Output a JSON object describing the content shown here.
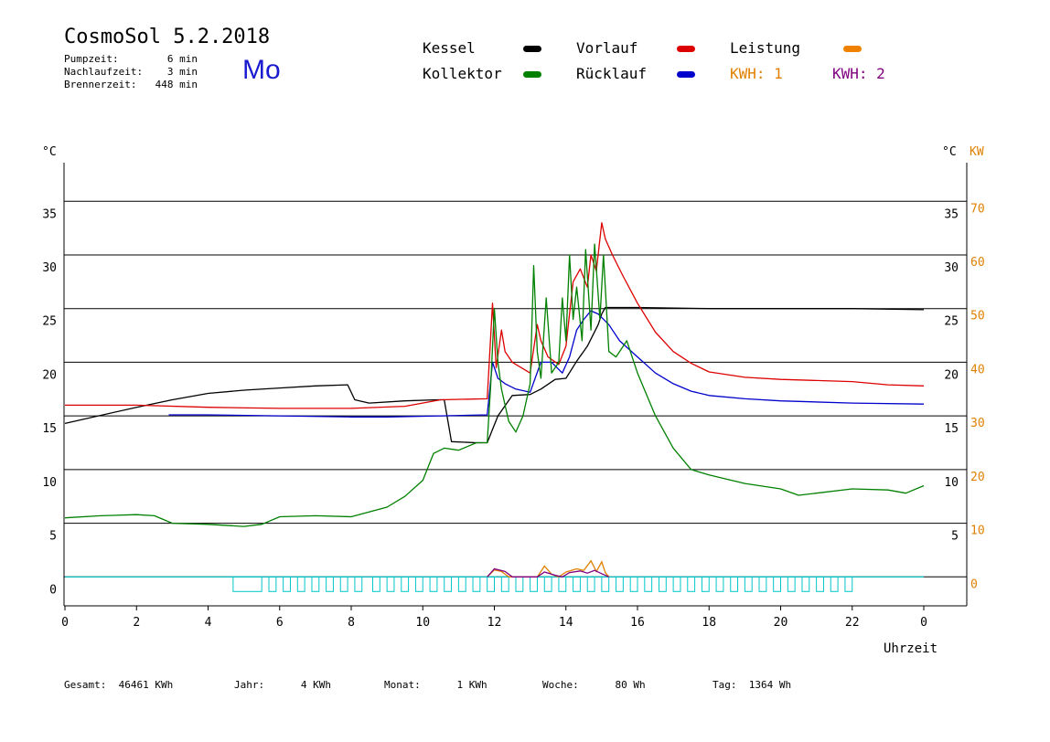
{
  "header": {
    "title": "CosmoSol 5.2.2018",
    "day": "Mo",
    "info": [
      {
        "label": "Pumpzeit:",
        "value": "6 min"
      },
      {
        "label": "Nachlaufzeit:",
        "value": "3 min"
      },
      {
        "label": "Brennerzeit:",
        "value": "448 min"
      }
    ]
  },
  "legend": {
    "kessel": {
      "label": "Kessel",
      "color": "#000000"
    },
    "vorlauf": {
      "label": "Vorlauf",
      "color": "#dd0000"
    },
    "leistung": {
      "label": "Leistung",
      "color": "#f08000"
    },
    "kollektor": {
      "label": "Kollektor",
      "color": "#008000"
    },
    "ruecklauf": {
      "label": "Rücklauf",
      "color": "#0000cc"
    },
    "kwh1": {
      "label": "KWH: 1",
      "color": "#e08000"
    },
    "kwh2": {
      "label": "KWH: 2",
      "color": "#800080"
    }
  },
  "footer": {
    "gesamt": {
      "label": "Gesamt:",
      "value": "46461 KWh"
    },
    "jahr": {
      "label": "Jahr:",
      "value": "4 KWh"
    },
    "monat": {
      "label": "Monat:",
      "value": "1 KWh"
    },
    "woche": {
      "label": "Woche:",
      "value": "80 Wh"
    },
    "tag": {
      "label": "Tag:",
      "value": "1364 Wh"
    }
  },
  "chart_data": {
    "type": "line",
    "xlabel": "Uhrzeit",
    "ylabel_left": "°C",
    "ylabel_right_temp": "°C",
    "ylabel_right_power": "KW",
    "xlim": [
      0,
      24
    ],
    "ylim": [
      -2.7,
      38.6
    ],
    "x_ticks": [
      "0",
      "2",
      "4",
      "6",
      "8",
      "10",
      "12",
      "14",
      "16",
      "18",
      "20",
      "22",
      "0"
    ],
    "y_ticks_left": [
      "0",
      "5",
      "10",
      "15",
      "20",
      "25",
      "30",
      "35"
    ],
    "y_ticks_right_temp": [
      "5",
      "10",
      "15",
      "20",
      "25",
      "30",
      "35"
    ],
    "y_ticks_right_power": [
      "0",
      "10",
      "20",
      "30",
      "40",
      "50",
      "60",
      "70"
    ],
    "grid": true,
    "series": [
      {
        "name": "Kessel",
        "color": "#000000",
        "points": [
          [
            0,
            14.3
          ],
          [
            2,
            15.8
          ],
          [
            3,
            16.5
          ],
          [
            4,
            17.1
          ],
          [
            5,
            17.4
          ],
          [
            6,
            17.6
          ],
          [
            7,
            17.8
          ],
          [
            7.9,
            17.9
          ],
          [
            8.1,
            16.5
          ],
          [
            8.5,
            16.2
          ],
          [
            9.5,
            16.4
          ],
          [
            10.4,
            16.5
          ],
          [
            10.6,
            16.5
          ],
          [
            10.8,
            12.6
          ],
          [
            11.5,
            12.5
          ],
          [
            11.8,
            12.5
          ],
          [
            12.1,
            15.0
          ],
          [
            12.5,
            16.9
          ],
          [
            13.0,
            17.0
          ],
          [
            13.3,
            17.5
          ],
          [
            13.7,
            18.4
          ],
          [
            14.0,
            18.5
          ],
          [
            14.3,
            20.1
          ],
          [
            14.6,
            21.5
          ],
          [
            14.9,
            23.5
          ],
          [
            15.0,
            24.5
          ],
          [
            15.1,
            25.1
          ],
          [
            16.0,
            25.1
          ],
          [
            18,
            25.0
          ],
          [
            20,
            25.0
          ],
          [
            22,
            25.0
          ],
          [
            24,
            24.9
          ]
        ]
      },
      {
        "name": "Vorlauf",
        "color": "#dd0000",
        "points": [
          [
            0,
            16.0
          ],
          [
            2,
            16.0
          ],
          [
            4,
            15.8
          ],
          [
            6,
            15.7
          ],
          [
            8,
            15.7
          ],
          [
            9.5,
            15.9
          ],
          [
            10.5,
            16.5
          ],
          [
            11.8,
            16.6
          ],
          [
            11.95,
            25.5
          ],
          [
            12.05,
            19.5
          ],
          [
            12.2,
            23.0
          ],
          [
            12.3,
            21.0
          ],
          [
            12.5,
            20.0
          ],
          [
            13.0,
            19.0
          ],
          [
            13.2,
            23.5
          ],
          [
            13.3,
            22.0
          ],
          [
            13.5,
            20.5
          ],
          [
            13.8,
            19.8
          ],
          [
            14.0,
            21.5
          ],
          [
            14.1,
            24.5
          ],
          [
            14.2,
            27.5
          ],
          [
            14.4,
            28.7
          ],
          [
            14.6,
            27.0
          ],
          [
            14.7,
            30.0
          ],
          [
            14.85,
            28.5
          ],
          [
            15.0,
            33.0
          ],
          [
            15.1,
            31.5
          ],
          [
            15.3,
            30.0
          ],
          [
            15.6,
            28.0
          ],
          [
            16.0,
            25.5
          ],
          [
            16.5,
            22.8
          ],
          [
            17.0,
            21.0
          ],
          [
            17.5,
            19.9
          ],
          [
            18,
            19.1
          ],
          [
            19,
            18.6
          ],
          [
            20,
            18.4
          ],
          [
            21,
            18.3
          ],
          [
            22,
            18.2
          ],
          [
            23,
            17.9
          ],
          [
            24,
            17.8
          ]
        ]
      },
      {
        "name": "Rücklauf",
        "color": "#0000cc",
        "points": [
          [
            2.9,
            15.1
          ],
          [
            4,
            15.1
          ],
          [
            6,
            15.0
          ],
          [
            8,
            14.9
          ],
          [
            9,
            14.9
          ],
          [
            10.5,
            15.0
          ],
          [
            11.8,
            15.1
          ],
          [
            11.95,
            20.0
          ],
          [
            12.1,
            18.5
          ],
          [
            12.3,
            18.0
          ],
          [
            12.6,
            17.5
          ],
          [
            13.0,
            17.2
          ],
          [
            13.3,
            20.0
          ],
          [
            13.6,
            20.0
          ],
          [
            13.9,
            19.0
          ],
          [
            14.1,
            20.5
          ],
          [
            14.3,
            23.0
          ],
          [
            14.5,
            24.0
          ],
          [
            14.7,
            24.8
          ],
          [
            14.9,
            24.5
          ],
          [
            15.2,
            23.5
          ],
          [
            15.5,
            22.0
          ],
          [
            16.0,
            20.5
          ],
          [
            16.5,
            19.0
          ],
          [
            17,
            18.0
          ],
          [
            17.5,
            17.3
          ],
          [
            18,
            16.9
          ],
          [
            19,
            16.6
          ],
          [
            20,
            16.4
          ],
          [
            22,
            16.2
          ],
          [
            24,
            16.1
          ]
        ]
      },
      {
        "name": "Kollektor",
        "color": "#008000",
        "points": [
          [
            0,
            5.5
          ],
          [
            1,
            5.7
          ],
          [
            2,
            5.8
          ],
          [
            2.5,
            5.7
          ],
          [
            3,
            5.0
          ],
          [
            4,
            4.9
          ],
          [
            5,
            4.7
          ],
          [
            5.5,
            4.9
          ],
          [
            6,
            5.6
          ],
          [
            7,
            5.7
          ],
          [
            8,
            5.6
          ],
          [
            9,
            6.5
          ],
          [
            9.5,
            7.5
          ],
          [
            10,
            9.0
          ],
          [
            10.3,
            11.5
          ],
          [
            10.6,
            12.0
          ],
          [
            11,
            11.8
          ],
          [
            11.5,
            12.5
          ],
          [
            11.8,
            12.5
          ],
          [
            11.9,
            18.0
          ],
          [
            12.0,
            25.0
          ],
          [
            12.1,
            20.0
          ],
          [
            12.2,
            17.5
          ],
          [
            12.4,
            14.5
          ],
          [
            12.6,
            13.5
          ],
          [
            12.8,
            15.0
          ],
          [
            13.0,
            18.0
          ],
          [
            13.1,
            29.0
          ],
          [
            13.2,
            21.0
          ],
          [
            13.3,
            18.5
          ],
          [
            13.45,
            26.0
          ],
          [
            13.6,
            19.0
          ],
          [
            13.8,
            20.0
          ],
          [
            13.9,
            26.0
          ],
          [
            14.0,
            22.0
          ],
          [
            14.1,
            30.0
          ],
          [
            14.2,
            24.0
          ],
          [
            14.3,
            27.0
          ],
          [
            14.45,
            22.0
          ],
          [
            14.55,
            30.5
          ],
          [
            14.7,
            23.0
          ],
          [
            14.8,
            31.0
          ],
          [
            14.95,
            24.0
          ],
          [
            15.05,
            30.0
          ],
          [
            15.2,
            21.0
          ],
          [
            15.4,
            20.5
          ],
          [
            15.7,
            22.0
          ],
          [
            16.0,
            19.0
          ],
          [
            16.5,
            15.0
          ],
          [
            17,
            12.0
          ],
          [
            17.5,
            10.0
          ],
          [
            18,
            9.5
          ],
          [
            19,
            8.7
          ],
          [
            20,
            8.2
          ],
          [
            20.5,
            7.6
          ],
          [
            21,
            7.8
          ],
          [
            22,
            8.2
          ],
          [
            23,
            8.1
          ],
          [
            23.5,
            7.8
          ],
          [
            24,
            8.5
          ]
        ]
      }
    ],
    "power_series": [
      {
        "name": "KWH: 1",
        "color": "#e08000",
        "points": [
          [
            11.8,
            0
          ],
          [
            12.0,
            1.3
          ],
          [
            12.2,
            1.0
          ],
          [
            12.4,
            0
          ],
          [
            13.2,
            0
          ],
          [
            13.4,
            2.0
          ],
          [
            13.6,
            0.5
          ],
          [
            13.8,
            0
          ],
          [
            14.0,
            0.9
          ],
          [
            14.3,
            1.5
          ],
          [
            14.5,
            1.2
          ],
          [
            14.7,
            3.0
          ],
          [
            14.85,
            1.0
          ],
          [
            15.0,
            2.8
          ],
          [
            15.1,
            0.8
          ],
          [
            15.2,
            0
          ]
        ]
      },
      {
        "name": "KWH: 2",
        "color": "#800080",
        "points": [
          [
            11.8,
            0
          ],
          [
            12.0,
            1.5
          ],
          [
            12.3,
            1.0
          ],
          [
            12.5,
            0
          ],
          [
            13.2,
            0
          ],
          [
            13.4,
            0.9
          ],
          [
            13.7,
            0.3
          ],
          [
            13.9,
            0
          ],
          [
            14.1,
            0.8
          ],
          [
            14.4,
            1.1
          ],
          [
            14.6,
            0.7
          ],
          [
            14.8,
            1.2
          ],
          [
            15.0,
            0.6
          ],
          [
            15.2,
            0
          ]
        ]
      }
    ],
    "pump_activity": {
      "color": "#00c8c8",
      "intervals": [
        [
          4.7,
          5.5
        ],
        [
          5.7,
          5.9
        ],
        [
          6.1,
          6.3
        ],
        [
          6.5,
          6.7
        ],
        [
          6.9,
          7.1
        ],
        [
          7.3,
          7.5
        ],
        [
          7.7,
          7.9
        ],
        [
          8.1,
          8.3
        ],
        [
          8.6,
          8.8
        ],
        [
          9.0,
          9.2
        ],
        [
          9.4,
          9.6
        ],
        [
          9.8,
          10.0
        ],
        [
          10.2,
          10.4
        ],
        [
          10.6,
          10.8
        ],
        [
          11.0,
          11.2
        ],
        [
          11.4,
          11.6
        ],
        [
          11.8,
          12.0
        ],
        [
          12.2,
          12.4
        ],
        [
          12.6,
          12.8
        ],
        [
          13.0,
          13.2
        ],
        [
          13.4,
          13.6
        ],
        [
          13.8,
          14.0
        ],
        [
          14.2,
          14.4
        ],
        [
          14.6,
          14.8
        ],
        [
          15.0,
          15.2
        ],
        [
          15.4,
          15.6
        ],
        [
          15.8,
          16.0
        ],
        [
          16.2,
          16.4
        ],
        [
          16.6,
          16.8
        ],
        [
          17.0,
          17.2
        ],
        [
          17.4,
          17.6
        ],
        [
          17.8,
          18.0
        ],
        [
          18.2,
          18.4
        ],
        [
          18.6,
          18.8
        ],
        [
          19.0,
          19.2
        ],
        [
          19.4,
          19.6
        ],
        [
          19.8,
          20.0
        ],
        [
          20.2,
          20.4
        ],
        [
          20.6,
          20.8
        ],
        [
          21.0,
          21.2
        ],
        [
          21.4,
          21.6
        ],
        [
          21.8,
          22.0
        ]
      ]
    }
  }
}
